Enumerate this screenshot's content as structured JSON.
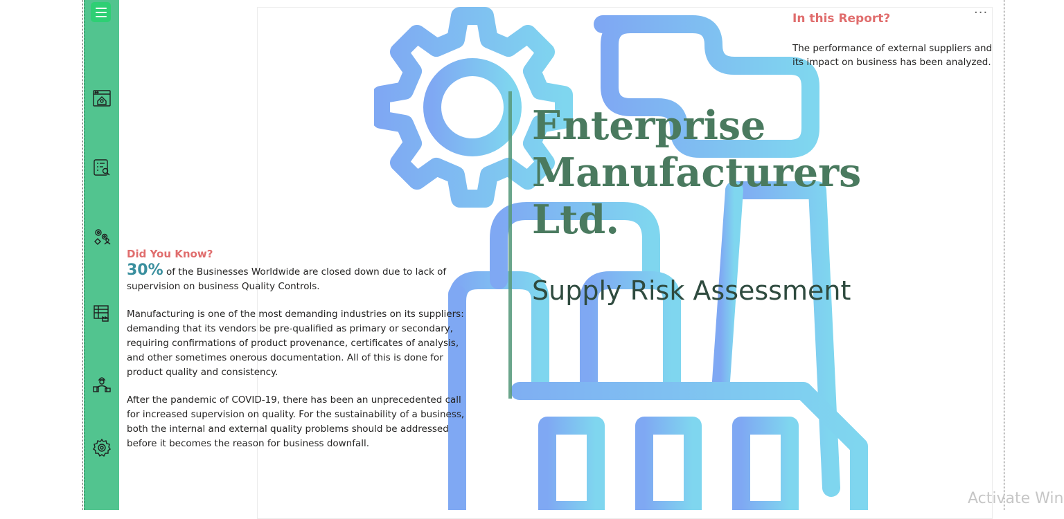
{
  "sidebar": {
    "menu_icon": "hamburger-menu-icon",
    "items": [
      {
        "icon": "home-dashboard-icon"
      },
      {
        "icon": "checklist-search-icon"
      },
      {
        "icon": "gears-person-icon"
      },
      {
        "icon": "factory-chart-icon"
      },
      {
        "icon": "worker-icon"
      },
      {
        "icon": "settings-gear-icon"
      }
    ]
  },
  "report": {
    "company_name": "Enterprise Manufacturers Ltd.",
    "subtitle": "Supply Risk Assessment"
  },
  "in_this_report": {
    "title": "In this Report?",
    "text": "The performance of external suppliers and its impact on business has been analyzed."
  },
  "did_you_know": {
    "title": "Did You Know?",
    "stat": "30%",
    "stat_text": "of the Businesses Worldwide are closed down due to lack of supervision on business Quality Controls.",
    "paragraph_1": "Manufacturing is one of the most demanding industries on its suppliers: demanding that its vendors be pre-qualified as primary or secondary, requiring confirmations of product provenance, certificates of analysis, and other sometimes onerous documentation. All of this is done for product quality and consistency.",
    "paragraph_2": "After the pandemic of COVID-19, there has been an unprecedented call for increased supervision on quality. For the sustainability of a business, both the internal and external quality problems should be addressed before it becomes the reason for business downfall."
  },
  "visual_options_label": "···",
  "os_watermark": "Activate Win",
  "colors": {
    "sidebar": "#52c48f",
    "accent_red": "#e06d6d",
    "company_green": "#4a7a5f",
    "stat_teal": "#3a8f9e"
  }
}
